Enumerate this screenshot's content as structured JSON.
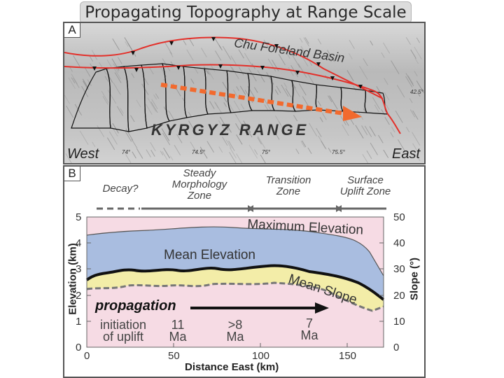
{
  "title": "Propagating Topography at Range Scale",
  "panel_a": {
    "label": "A",
    "basin_label": "Chu Foreland Basin",
    "range_label": "KYRGYZ RANGE",
    "west": "West",
    "east": "East",
    "latitude": "42.5°",
    "longitudes": [
      "74°",
      "74.5°",
      "75°",
      "75.5°"
    ]
  },
  "panel_b": {
    "label": "B",
    "zones": {
      "decay": "Decay?",
      "steady": [
        "Steady",
        "Morphology",
        "Zone"
      ],
      "transition": [
        "Transition",
        "Zone"
      ],
      "uplift": [
        "Surface",
        "Uplift Zone"
      ]
    },
    "y_left_title": "Elevation (km)",
    "y_right_title": "Slope (°)",
    "x_title": "Distance East (km)",
    "y_left_ticks": [
      "5",
      "4",
      "3",
      "2",
      "1",
      "0"
    ],
    "y_right_ticks": [
      "50",
      "40",
      "30",
      "20",
      "10",
      "0"
    ],
    "x_ticks": [
      "0",
      "50",
      "100",
      "150"
    ],
    "labels": {
      "max_elev": "Maximum Elevation",
      "mean_elev": "Mean Elevation",
      "mean_slope": "Mean Slope",
      "propagation": "propagation",
      "initiation": [
        "initiation",
        "of uplift"
      ],
      "ages": [
        [
          "11",
          "Ma"
        ],
        [
          ">8",
          "Ma"
        ],
        [
          "7",
          "Ma"
        ]
      ]
    },
    "colors": {
      "max_fill": "#a9bde0",
      "mean_fill": "#f3eda8",
      "slope_fill": "#f6dbe4",
      "arrow": "#f26a2e",
      "fault": "#e3302a"
    }
  }
}
